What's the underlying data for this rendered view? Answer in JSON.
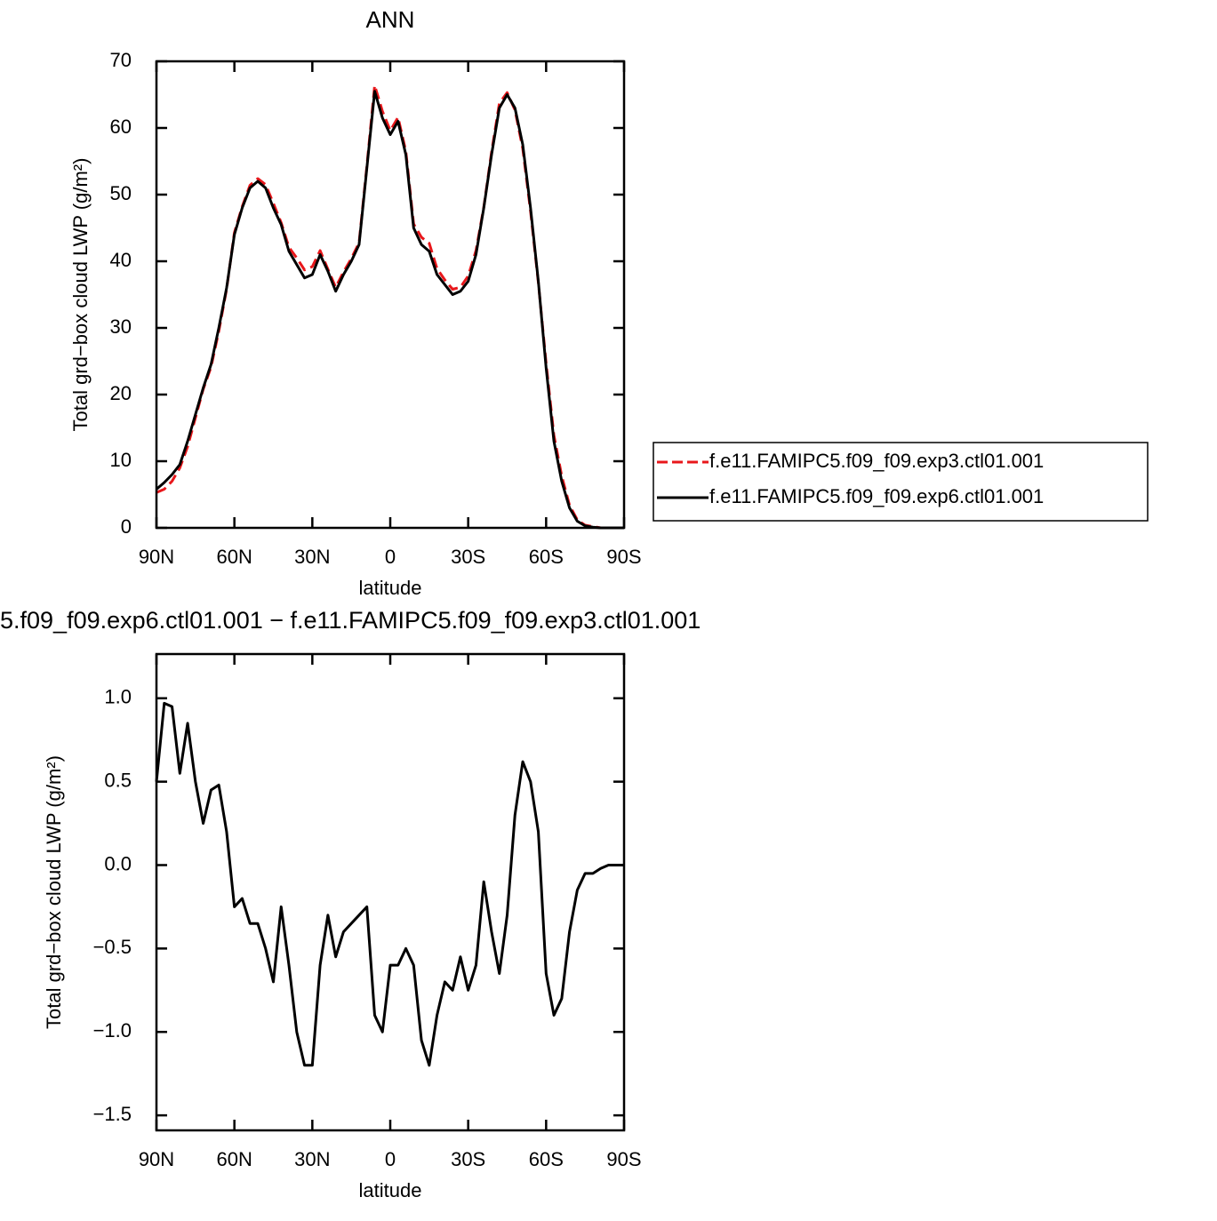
{
  "chart_data": [
    {
      "type": "line",
      "title": "ANN",
      "x_label": "latitude",
      "y_label": "Total grd−box cloud LWP (g/m²)",
      "x": [
        90,
        87,
        84,
        81,
        78,
        75,
        72,
        69,
        66,
        63,
        60,
        57,
        54,
        51,
        48,
        45,
        42,
        39,
        36,
        33,
        30,
        27,
        24,
        21,
        18,
        15,
        12,
        9,
        6,
        3,
        0,
        -3,
        -6,
        -9,
        -12,
        -15,
        -18,
        -21,
        -24,
        -27,
        -30,
        -33,
        -36,
        -39,
        -42,
        -45,
        -48,
        -51,
        -54,
        -57,
        -60,
        -63,
        -66,
        -69,
        -72,
        -75,
        -78,
        -81,
        -84,
        -87,
        -90
      ],
      "series": [
        {
          "name": "f.e11.FAMIPC5.f09_f09.exp3.ctl01.001",
          "color": "#e8171b",
          "dashed": true,
          "values": [
            5.3,
            5.8,
            7.0,
            9.0,
            12.2,
            16.5,
            20.8,
            24.1,
            29.5,
            35.8,
            44.3,
            48.2,
            51.4,
            52.4,
            51.5,
            48.7,
            45.8,
            42.1,
            40.5,
            38.7,
            39.2,
            41.6,
            38.8,
            36.1,
            38.4,
            40.4,
            42.8,
            54.3,
            66.4,
            62.5,
            59.6,
            61.6,
            56.5,
            45.6,
            43.6,
            42.7,
            38.9,
            37.2,
            35.8,
            36.1,
            37.8,
            41.6,
            48.1,
            56.4,
            63.7,
            65.3,
            62.7,
            56.9,
            47.5,
            36.8,
            24.7,
            13.9,
            7.8,
            3.4,
            1.2,
            0.4,
            0.2,
            0,
            0,
            0,
            0
          ]
        },
        {
          "name": "f.e11.FAMIPC5.f09_f09.exp6.ctl01.001",
          "color": "#000000",
          "dashed": false,
          "values": [
            5.8,
            6.8,
            8,
            9.5,
            13,
            17,
            21,
            24.5,
            30,
            36,
            44,
            48,
            51,
            52,
            51,
            48,
            45.5,
            41.5,
            39.5,
            37.5,
            38,
            41,
            38.5,
            35.5,
            38,
            40,
            42.5,
            54,
            65.5,
            61.5,
            59,
            61,
            56,
            45,
            42.5,
            41.5,
            38,
            36.5,
            35,
            35.5,
            37,
            41,
            48,
            56,
            63,
            65,
            63,
            57.5,
            48,
            37,
            24,
            13,
            7,
            3,
            1,
            0.3,
            0.1,
            0,
            0,
            0,
            0
          ]
        }
      ],
      "xlim": [
        90,
        -90
      ],
      "xticks": [
        {
          "value": 90,
          "label": "90N"
        },
        {
          "value": 60,
          "label": "60N"
        },
        {
          "value": 30,
          "label": "30N"
        },
        0,
        {
          "value": -30,
          "label": "30S"
        },
        {
          "value": -60,
          "label": "60S"
        },
        {
          "value": -90,
          "label": "90S"
        }
      ],
      "ylim": [
        0,
        70
      ],
      "yticks": [
        0,
        10,
        20,
        30,
        40,
        50,
        60,
        70
      ],
      "legend": "right"
    },
    {
      "type": "line",
      "title": "5.f09_f09.exp6.ctl01.001  −  f.e11.FAMIPC5.f09_f09.exp3.ctl01.001",
      "x_label": "latitude",
      "y_label": "Total grd−box cloud LWP (g/m²)",
      "x": [
        90,
        87,
        84,
        81,
        78,
        75,
        72,
        69,
        66,
        63,
        60,
        57,
        54,
        51,
        48,
        45,
        42,
        39,
        36,
        33,
        30,
        27,
        24,
        21,
        18,
        15,
        12,
        9,
        6,
        3,
        0,
        -3,
        -6,
        -9,
        -12,
        -15,
        -18,
        -21,
        -24,
        -27,
        -30,
        -33,
        -36,
        -39,
        -42,
        -45,
        -48,
        -51,
        -54,
        -57,
        -60,
        -63,
        -66,
        -69,
        -72,
        -75,
        -78,
        -81,
        -84,
        -87,
        -90
      ],
      "series": [
        {
          "color": "#000000",
          "dashed": false,
          "values": [
            0.5,
            0.97,
            0.95,
            0.55,
            0.85,
            0.5,
            0.25,
            0.45,
            0.48,
            0.2,
            -0.25,
            -0.2,
            -0.35,
            -0.35,
            -0.5,
            -0.7,
            -0.25,
            -0.6,
            -1.0,
            -1.2,
            -1.2,
            -0.6,
            -0.3,
            -0.55,
            -0.4,
            -0.35,
            -0.3,
            -0.25,
            -0.9,
            -1.0,
            -0.6,
            -0.6,
            -0.5,
            -0.6,
            -1.05,
            -1.2,
            -0.9,
            -0.7,
            -0.75,
            -0.55,
            -0.75,
            -0.6,
            -0.1,
            -0.4,
            -0.65,
            -0.3,
            0.3,
            0.62,
            0.5,
            0.2,
            -0.65,
            -0.9,
            -0.8,
            -0.4,
            -0.15,
            -0.05,
            -0.05,
            -0.02,
            0,
            0,
            0
          ]
        }
      ],
      "xlim": [
        90,
        -90
      ],
      "xticks": [
        {
          "value": 90,
          "label": "90N"
        },
        {
          "value": 60,
          "label": "60N"
        },
        {
          "value": 30,
          "label": "30N"
        },
        0,
        {
          "value": -30,
          "label": "30S"
        },
        {
          "value": -60,
          "label": "60S"
        },
        {
          "value": -90,
          "label": "90S"
        }
      ],
      "ylim": [
        -1.59,
        1.265
      ],
      "yticks": [
        {
          "value": -1.5,
          "label": "−1.5"
        },
        {
          "value": -1.0,
          "label": "−1.0"
        },
        {
          "value": -0.5,
          "label": "−0.5"
        },
        {
          "value": 0,
          "label": "0.0"
        },
        0.5,
        {
          "value": 1.0,
          "label": "1.0"
        }
      ]
    }
  ]
}
